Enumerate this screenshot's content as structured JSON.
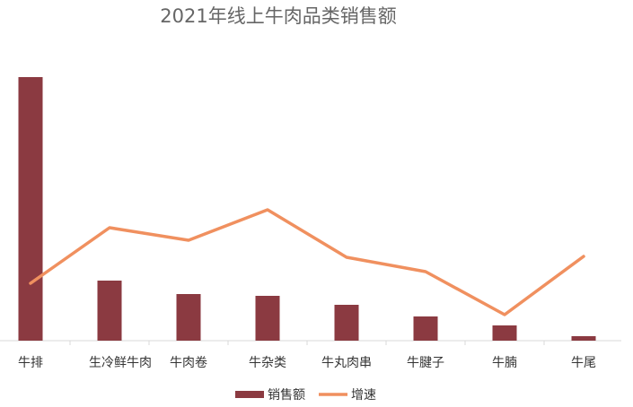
{
  "chart_data": {
    "type": "bar-line",
    "title": "2021年线上牛肉品类销售额",
    "categories": [
      "牛排",
      "生冷鲜牛肉",
      "牛肉卷",
      "牛杂类",
      "牛丸肉串",
      "牛腱子",
      "牛腩",
      "牛尾"
    ],
    "series": [
      {
        "name": "销售额",
        "type": "bar",
        "color": "#8b3a41",
        "values": [
          294,
          67,
          52,
          50,
          40,
          27,
          17,
          5
        ]
      },
      {
        "name": "增速",
        "type": "line",
        "color": "#f0905f",
        "values": [
          64,
          126,
          112,
          146,
          93,
          77,
          29,
          94
        ]
      }
    ],
    "legend": "bottom"
  }
}
